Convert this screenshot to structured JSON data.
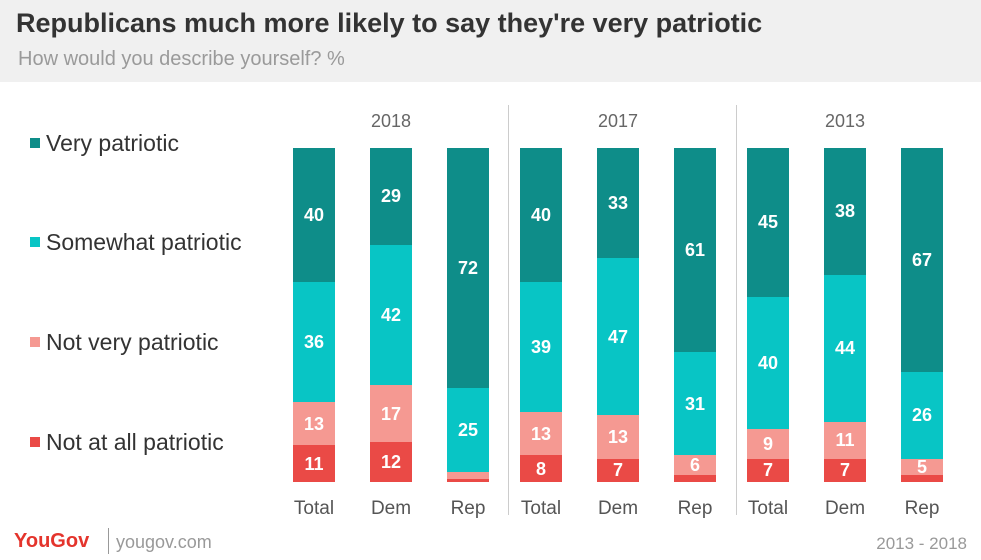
{
  "header": {
    "title": "Republicans much more likely to say they're very patriotic",
    "subtitle": "How would you describe yourself? %"
  },
  "colors": {
    "very": "#0e8d89",
    "somewhat": "#08c5c5",
    "not_very": "#f59992",
    "not_at_all": "#ea4a46"
  },
  "legend": [
    {
      "label": "Very patriotic",
      "color": "#0e8d89"
    },
    {
      "label": "Somewhat patriotic",
      "color": "#08c5c5"
    },
    {
      "label": "Not very patriotic",
      "color": "#f59992"
    },
    {
      "label": "Not at all patriotic",
      "color": "#ea4a46"
    }
  ],
  "chart_data": {
    "type": "bar",
    "stacked": true,
    "percent": true,
    "groups": [
      {
        "title": "2018",
        "categories": [
          {
            "name": "Total",
            "values": [
              40,
              36,
              13,
              11
            ]
          },
          {
            "name": "Dem",
            "values": [
              29,
              42,
              17,
              12
            ]
          },
          {
            "name": "Rep",
            "values": [
              72,
              25,
              2,
              1
            ]
          }
        ]
      },
      {
        "title": "2017",
        "categories": [
          {
            "name": "Total",
            "values": [
              40,
              39,
              13,
              8
            ]
          },
          {
            "name": "Dem",
            "values": [
              33,
              47,
              13,
              7
            ]
          },
          {
            "name": "Rep",
            "values": [
              61,
              31,
              6,
              2
            ]
          }
        ]
      },
      {
        "title": "2013",
        "categories": [
          {
            "name": "Total",
            "values": [
              45,
              40,
              9,
              7
            ]
          },
          {
            "name": "Dem",
            "values": [
              38,
              44,
              11,
              7
            ]
          },
          {
            "name": "Rep",
            "values": [
              67,
              26,
              5,
              2
            ]
          }
        ]
      }
    ],
    "series": [
      "Very patriotic",
      "Somewhat patriotic",
      "Not very patriotic",
      "Not at all patriotic"
    ],
    "label_threshold": 5
  },
  "footer": {
    "logo": "YouGov",
    "url": "yougov.com",
    "source": "2013 - 2018"
  }
}
